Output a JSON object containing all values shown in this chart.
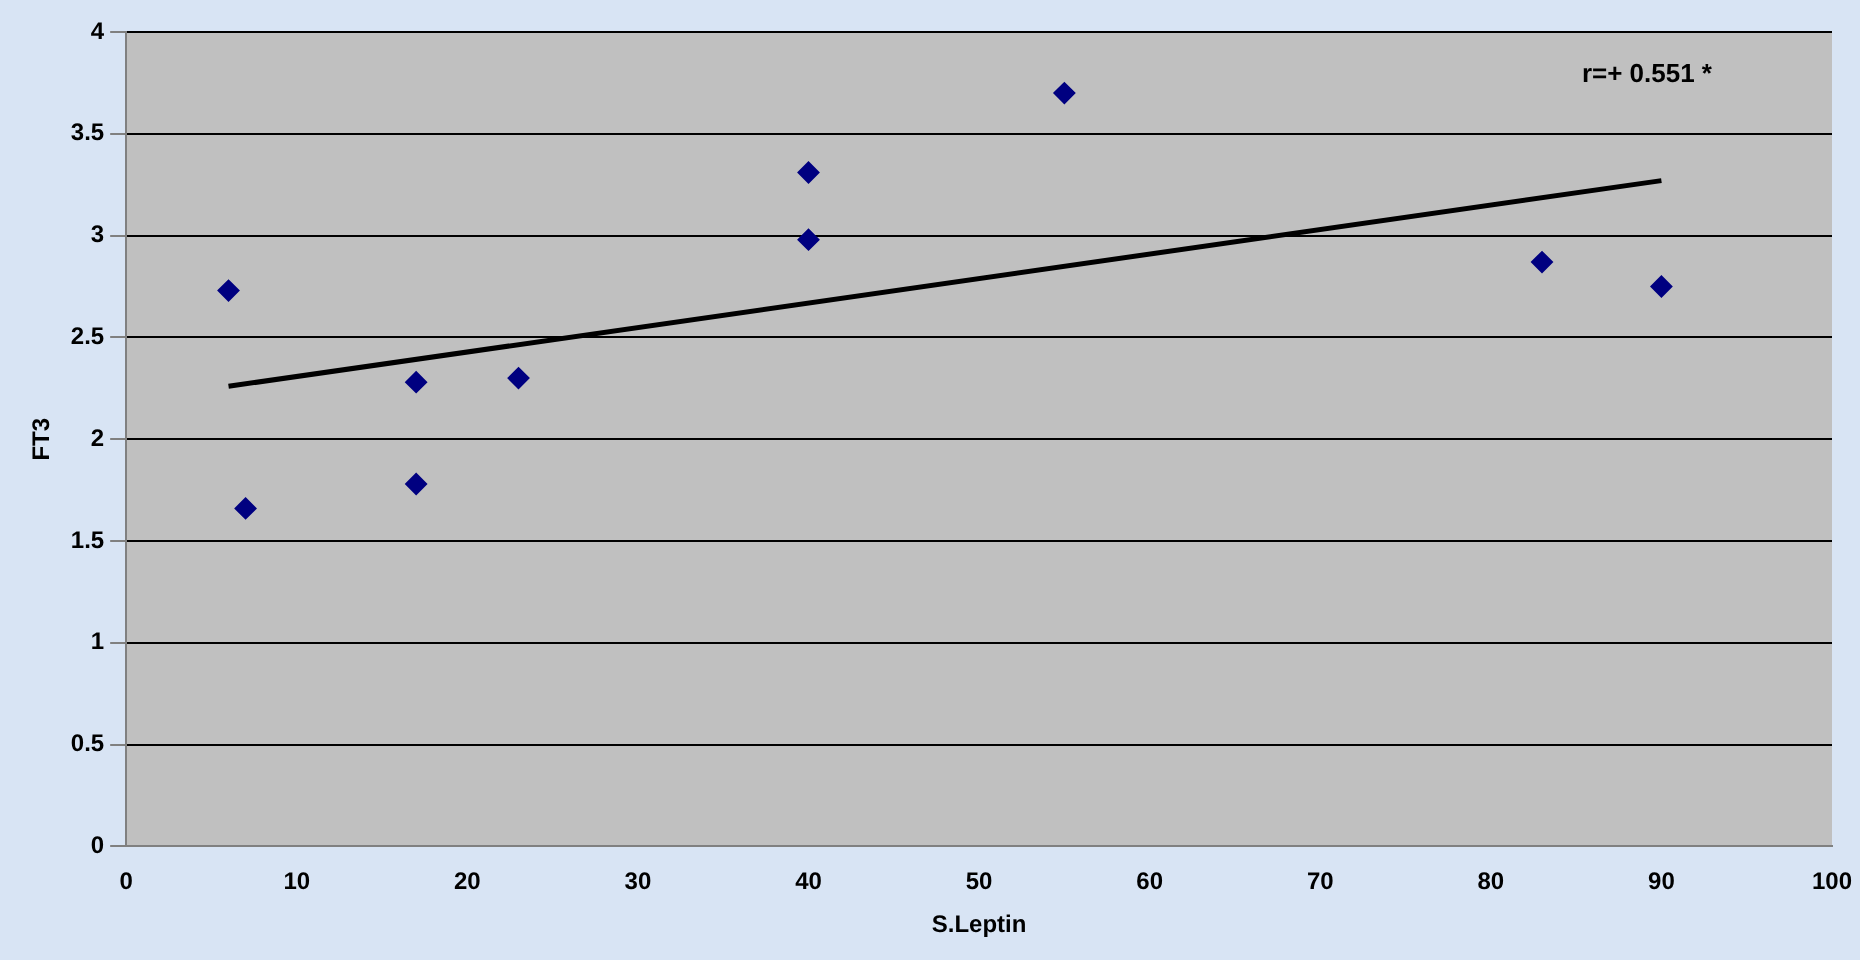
{
  "chart_data": {
    "type": "scatter",
    "xlabel": "S.Leptin",
    "ylabel": "FT3",
    "x": [
      6,
      7,
      17,
      17,
      23,
      40,
      40,
      55,
      83,
      90
    ],
    "series": [
      {
        "type": "scatter",
        "marker": "diamond",
        "color": "#000080",
        "values": [
          2.73,
          1.66,
          2.28,
          1.78,
          2.3,
          3.31,
          2.98,
          3.7,
          2.87,
          2.75
        ]
      },
      {
        "type": "line",
        "color": "#000000",
        "x": [
          6,
          90
        ],
        "values": [
          2.26,
          3.27
        ]
      }
    ],
    "xlim": [
      0,
      100
    ],
    "xticks": [
      0,
      10,
      20,
      30,
      40,
      50,
      60,
      70,
      80,
      90,
      100
    ],
    "ylim": [
      0,
      4
    ],
    "yticks": [
      0,
      0.5,
      1,
      1.5,
      2,
      2.5,
      3,
      3.5,
      4
    ],
    "grid": "y",
    "legend": false,
    "annotations": [
      "r=+ 0.551 *"
    ]
  }
}
